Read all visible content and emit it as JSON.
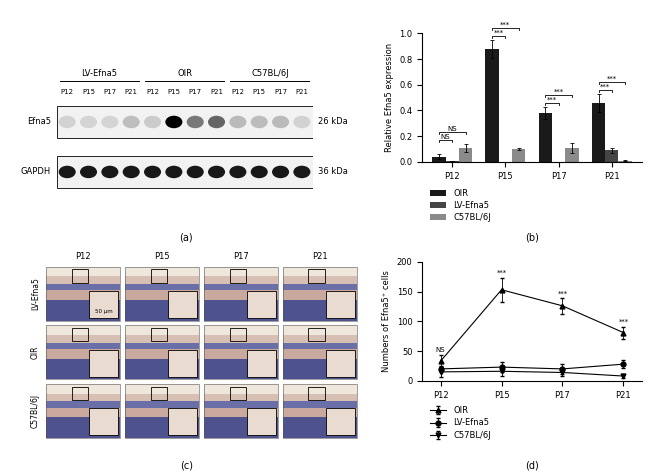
{
  "panel_labels": [
    "(a)",
    "(b)",
    "(c)",
    "(d)"
  ],
  "blot": {
    "groups": [
      "LV-Efna5",
      "OIR",
      "C57BL/6J"
    ],
    "lanes": [
      "P12",
      "P15",
      "P17",
      "P21"
    ],
    "rows": [
      {
        "name": "Efna5",
        "size": "26 kDa"
      },
      {
        "name": "GAPDH",
        "size": "36 kDa"
      }
    ]
  },
  "histology": {
    "rows": [
      "LV-Efna5",
      "OIR",
      "C57BL/6J"
    ],
    "columns": [
      "P12",
      "P15",
      "P17",
      "P21"
    ],
    "scale_bar": "50 μm"
  },
  "chart_data": [
    {
      "type": "bar",
      "y_label": "Relative Efna5 expression",
      "categories": [
        "P12",
        "P15",
        "P17",
        "P21"
      ],
      "series": [
        {
          "name": "OIR",
          "color": "#1a1a1a",
          "values": [
            0.04,
            0.88,
            0.38,
            0.46
          ],
          "errors": [
            0.02,
            0.07,
            0.05,
            0.07
          ]
        },
        {
          "name": "LV-Efna5",
          "color": "#454545",
          "values": [
            0.01,
            0.0,
            0.0,
            0.09
          ],
          "errors": [
            0.0,
            0.0,
            0.0,
            0.02
          ]
        },
        {
          "name": "C57BL/6J",
          "color": "#8a8a8a",
          "values": [
            0.11,
            0.1,
            0.11,
            0.01
          ],
          "errors": [
            0.03,
            0.01,
            0.04,
            0.005
          ]
        }
      ],
      "ylim": [
        0,
        1.0
      ],
      "yticks": [
        0.0,
        0.2,
        0.4,
        0.6,
        0.8,
        1.0
      ],
      "legend": "bottom",
      "annotations": [
        {
          "category": "P12",
          "between": [
            "OIR",
            "LV-Efna5"
          ],
          "text": "NS"
        },
        {
          "category": "P12",
          "between": [
            "OIR",
            "C57BL/6J"
          ],
          "text": "NS"
        },
        {
          "category": "P15",
          "between": [
            "OIR",
            "LV-Efna5"
          ],
          "text": "***"
        },
        {
          "category": "P15",
          "between": [
            "OIR",
            "C57BL/6J"
          ],
          "text": "***"
        },
        {
          "category": "P17",
          "between": [
            "OIR",
            "LV-Efna5"
          ],
          "text": "***"
        },
        {
          "category": "P17",
          "between": [
            "OIR",
            "C57BL/6J"
          ],
          "text": "***"
        },
        {
          "category": "P21",
          "between": [
            "OIR",
            "LV-Efna5"
          ],
          "text": "***"
        },
        {
          "category": "P21",
          "between": [
            "OIR",
            "C57BL/6J"
          ],
          "text": "***"
        }
      ]
    },
    {
      "type": "line",
      "y_label": "Numbers of Efna5⁺ cells",
      "categories": [
        "P12",
        "P15",
        "P17",
        "P21"
      ],
      "series": [
        {
          "name": "OIR",
          "color": "#000000",
          "marker": "triangle_up",
          "values": [
            33,
            153,
            126,
            81
          ],
          "errors": [
            10,
            20,
            13,
            10
          ]
        },
        {
          "name": "LV-Efna5",
          "color": "#000000",
          "marker": "circle",
          "values": [
            20,
            23,
            20,
            28
          ],
          "errors": [
            5,
            8,
            8,
            7
          ]
        },
        {
          "name": "C57BL/6J",
          "color": "#000000",
          "marker": "triangle_down",
          "values": [
            15,
            16,
            14,
            8
          ],
          "errors": [
            8,
            8,
            6,
            3
          ]
        }
      ],
      "ylim": [
        0,
        200
      ],
      "yticks": [
        0,
        50,
        100,
        150,
        200
      ],
      "legend": "bottom",
      "annotations": [
        {
          "category": "P12",
          "series": "OIR",
          "text": "NS"
        },
        {
          "category": "P15",
          "series": "OIR",
          "text": "***"
        },
        {
          "category": "P17",
          "series": "OIR",
          "text": "***"
        },
        {
          "category": "P21",
          "series": "OIR",
          "text": "***"
        }
      ]
    }
  ]
}
